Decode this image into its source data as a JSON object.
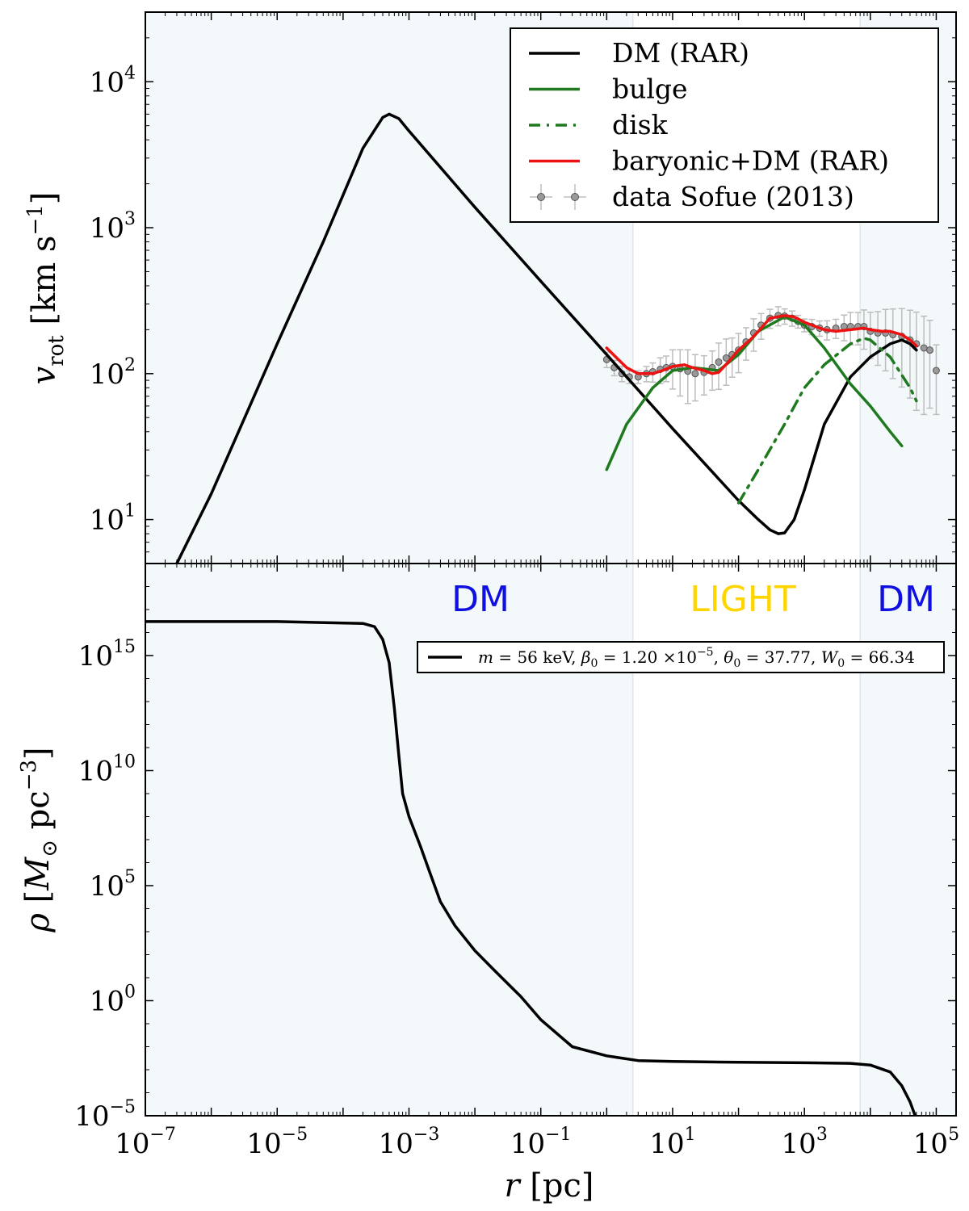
{
  "chart_data": [
    {
      "panel": "top",
      "type": "line",
      "ylabel": "v_rot [km s^-1]",
      "xscale": "log",
      "yscale": "log",
      "xlim": [
        1e-07,
        200000.0
      ],
      "ylim": [
        5,
        30000
      ],
      "y_ticks": [
        "10^1",
        "10^2",
        "10^3",
        "10^4"
      ],
      "legend": {
        "position": "top-right",
        "entries": [
          {
            "label": "DM (RAR)",
            "color": "#000000",
            "style": "solid"
          },
          {
            "label": "bulge",
            "color": "#1f7a1f",
            "style": "solid"
          },
          {
            "label": "disk",
            "color": "#1f7a1f",
            "style": "dashdot"
          },
          {
            "label": "baryonic+DM (RAR)",
            "color": "#ee1111",
            "style": "solid"
          },
          {
            "label": "data Sofue (2013)",
            "color": "#888888",
            "style": "errorbar-markers"
          }
        ]
      },
      "series": [
        {
          "name": "DM (RAR)",
          "color": "#000000",
          "style": "solid",
          "x": [
            3e-07,
            1e-06,
            1e-05,
            5e-05,
            0.0002,
            0.0004,
            0.0005,
            0.0007,
            0.001,
            0.01,
            0.1,
            1,
            10,
            100,
            200,
            300,
            400,
            500,
            700,
            1000,
            2000,
            5000,
            10000,
            20000,
            30000,
            40000,
            50000
          ],
          "y": [
            5,
            15,
            160,
            800,
            3500,
            5700,
            6000,
            5600,
            4600,
            1380,
            430,
            135,
            42,
            13.5,
            10,
            8.5,
            8,
            8.1,
            10,
            16,
            45,
            95,
            130,
            160,
            170,
            160,
            145
          ]
        },
        {
          "name": "bulge",
          "color": "#1f7a1f",
          "style": "solid",
          "x": [
            1,
            2,
            5,
            10,
            20,
            50,
            100,
            200,
            500,
            1000,
            2000,
            5000,
            10000,
            20000,
            30000
          ],
          "y": [
            22,
            45,
            80,
            105,
            110,
            105,
            135,
            195,
            245,
            215,
            150,
            85,
            60,
            40,
            32
          ]
        },
        {
          "name": "disk",
          "color": "#1f7a1f",
          "style": "dashdot",
          "x": [
            100,
            200,
            500,
            1000,
            2000,
            5000,
            8000,
            10000,
            20000,
            40000,
            50000
          ],
          "y": [
            13,
            22,
            45,
            80,
            115,
            160,
            175,
            170,
            130,
            80,
            65
          ]
        },
        {
          "name": "baryonic+DM (RAR)",
          "color": "#ee1111",
          "style": "solid",
          "x": [
            1,
            1.5,
            2,
            3,
            5,
            7,
            10,
            15,
            20,
            30,
            40,
            50,
            70,
            100,
            150,
            200,
            300,
            500,
            700,
            1000,
            1500,
            2000,
            3000,
            5000,
            8000,
            10000,
            15000,
            20000,
            30000,
            40000,
            50000
          ],
          "y": [
            150,
            125,
            110,
            100,
            100,
            105,
            112,
            115,
            110,
            105,
            100,
            102,
            120,
            145,
            170,
            195,
            240,
            250,
            245,
            225,
            210,
            200,
            195,
            200,
            205,
            200,
            195,
            195,
            185,
            170,
            155
          ]
        },
        {
          "name": "data Sofue (2013)",
          "color": "#888888",
          "style": "errorbar-markers",
          "x": [
            1,
            1.3,
            1.7,
            2.2,
            3,
            4,
            5,
            6.5,
            8,
            10,
            13,
            17,
            22,
            30,
            40,
            50,
            65,
            80,
            100,
            130,
            170,
            220,
            300,
            400,
            500,
            650,
            800,
            1000,
            1300,
            1700,
            2200,
            3000,
            4000,
            5000,
            6500,
            8000,
            10000,
            13000,
            17000,
            22000,
            30000,
            40000,
            50000,
            65000,
            80000,
            100000
          ],
          "y": [
            125,
            110,
            100,
            95,
            95,
            100,
            103,
            107,
            110,
            112,
            108,
            104,
            100,
            102,
            110,
            120,
            128,
            135,
            145,
            165,
            190,
            215,
            240,
            250,
            248,
            240,
            228,
            215,
            210,
            205,
            200,
            205,
            210,
            210,
            210,
            210,
            195,
            190,
            190,
            185,
            180,
            170,
            160,
            150,
            145,
            105
          ],
          "yerr_frac": [
            0.12,
            0.12,
            0.12,
            0.1,
            0.1,
            0.12,
            0.15,
            0.2,
            0.2,
            0.3,
            0.35,
            0.4,
            0.35,
            0.3,
            0.3,
            0.35,
            0.35,
            0.3,
            0.3,
            0.25,
            0.25,
            0.2,
            0.15,
            0.15,
            0.12,
            0.12,
            0.1,
            0.1,
            0.12,
            0.12,
            0.15,
            0.15,
            0.2,
            0.25,
            0.25,
            0.3,
            0.35,
            0.4,
            0.45,
            0.5,
            0.55,
            0.6,
            0.65,
            0.65,
            0.6,
            0.5
          ]
        }
      ]
    },
    {
      "panel": "bottom",
      "type": "line",
      "xlabel": "r [pc]",
      "ylabel": "ρ [M_⊙ pc^-3]",
      "xscale": "log",
      "yscale": "log",
      "xlim": [
        1e-07,
        200000.0
      ],
      "ylim": [
        1e-05,
        1e+19
      ],
      "x_ticks": [
        "10^-7",
        "10^-5",
        "10^-3",
        "10^-1",
        "10^1",
        "10^3",
        "10^5"
      ],
      "y_ticks": [
        "10^-5",
        "10^0",
        "10^5",
        "10^10",
        "10^15"
      ],
      "region_labels": [
        {
          "text": "DM",
          "color": "#1010e0"
        },
        {
          "text": "LIGHT",
          "color": "#ffd500"
        },
        {
          "text": "DM",
          "color": "#1010e0"
        }
      ],
      "shaded_regions": [
        {
          "x0": 1e-07,
          "x1": 2.5,
          "color": "#f3f8fa"
        },
        {
          "x0": 7000,
          "x1": 200000.0,
          "color": "#f3f8fa"
        }
      ],
      "legend": {
        "position": "upper-right",
        "entries": [
          {
            "label_parts": [
              "m",
              " = 56 keV, ",
              "β",
              "0",
              " = 1.20 ×10",
              "−5",
              ", ",
              "θ",
              "0",
              " = 37.77, ",
              "W",
              "0",
              " = 66.34"
            ],
            "color": "#000000"
          }
        ]
      },
      "series": [
        {
          "name": "ρ",
          "color": "#000000",
          "x": [
            1e-07,
            1e-05,
            0.0002,
            0.0003,
            0.0004,
            0.0005,
            0.0006,
            0.0007,
            0.0008,
            0.001,
            0.0015,
            0.002,
            0.003,
            0.005,
            0.01,
            0.02,
            0.05,
            0.1,
            0.3,
            1,
            3,
            10,
            100,
            1000,
            5000,
            10000,
            20000,
            30000,
            40000,
            50000
          ],
          "y": [
            3e+16,
            3e+16,
            2.5e+16,
            1.8e+16,
            5000000000000000.0,
            500000000000000.0,
            5000000000000.0,
            50000000000.0,
            1000000000.0,
            100000000.0,
            5000000.0,
            500000.0,
            20000.0,
            1800,
            150,
            20,
            1.5,
            0.15,
            0.01,
            0.004,
            0.0025,
            0.0023,
            0.0021,
            0.002,
            0.0019,
            0.0016,
            0.0008,
            0.0002,
            4e-05,
            7e-06
          ]
        }
      ]
    }
  ]
}
